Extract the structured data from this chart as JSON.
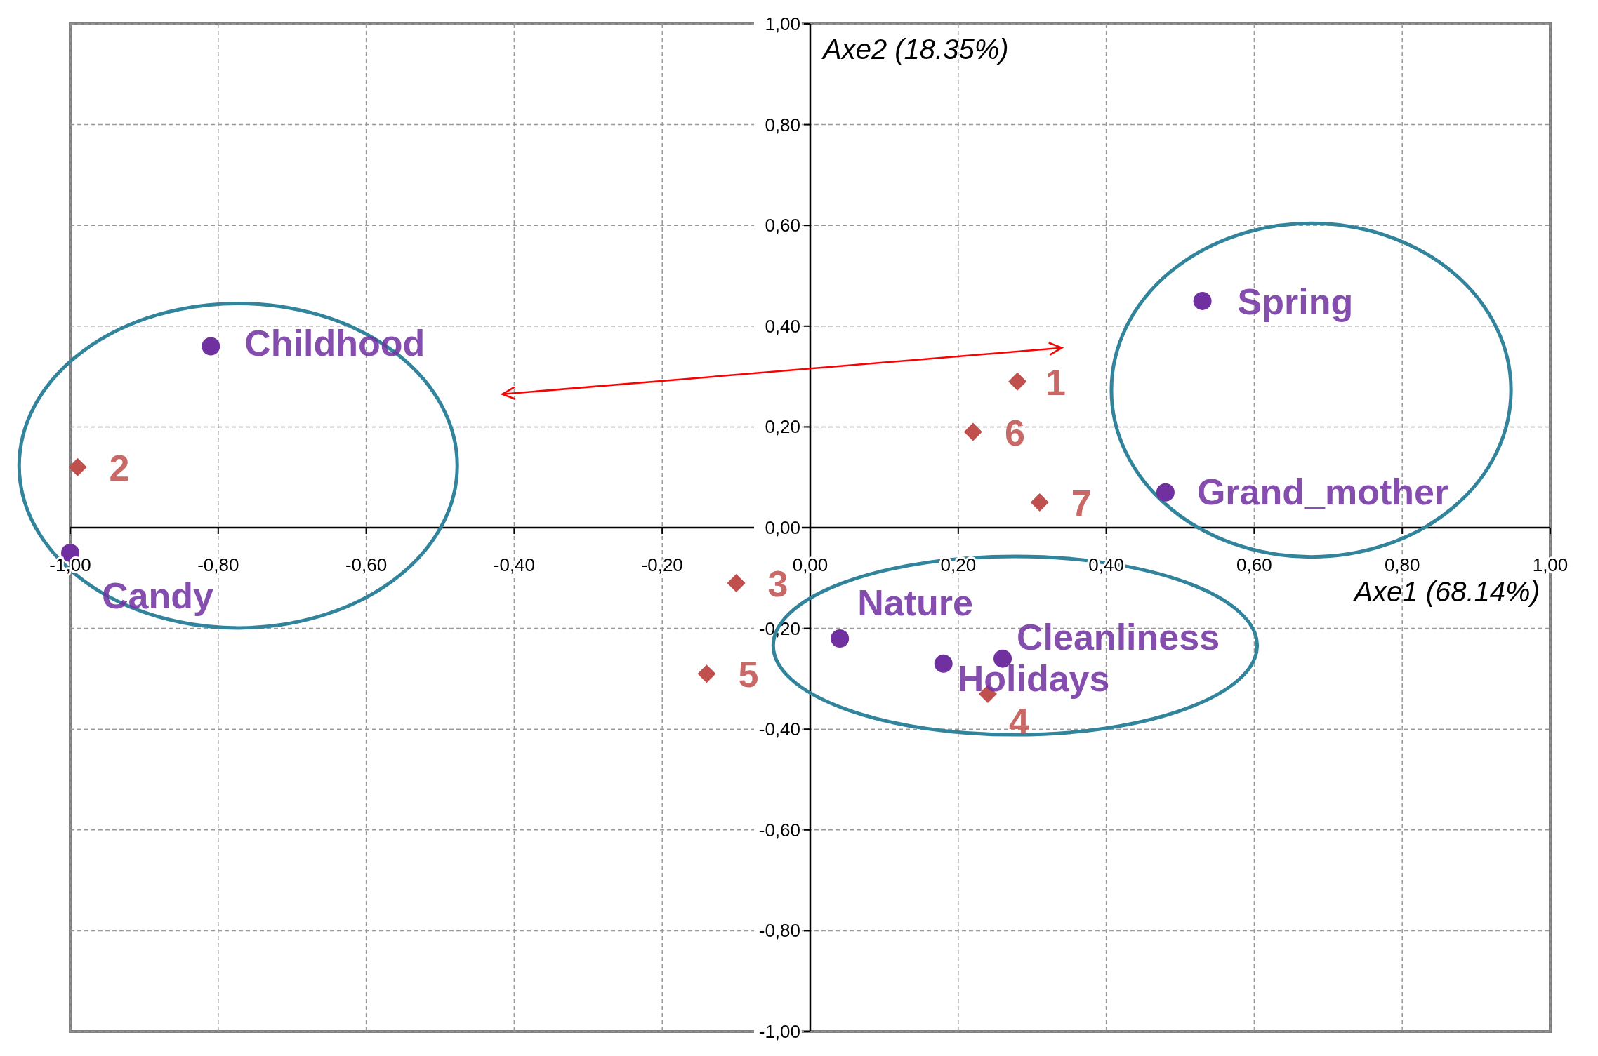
{
  "chart_data": {
    "type": "scatter",
    "xlabel": "Axe1 (68.14%)",
    "ylabel": "Axe2 (18.35%)",
    "xlim": [
      -1,
      1
    ],
    "ylim": [
      -1,
      1
    ],
    "xticks": [
      {
        "value": -1,
        "label": "-1,00"
      },
      {
        "value": -0.8,
        "label": "-0,80"
      },
      {
        "value": -0.6,
        "label": "-0,60"
      },
      {
        "value": -0.4,
        "label": "-0,40"
      },
      {
        "value": -0.2,
        "label": "-0,20"
      },
      {
        "value": 0,
        "label": "0,00"
      },
      {
        "value": 0.2,
        "label": "0,20"
      },
      {
        "value": 0.4,
        "label": "0,40"
      },
      {
        "value": 0.6,
        "label": "0,60"
      },
      {
        "value": 0.8,
        "label": "0,80"
      },
      {
        "value": 1,
        "label": "1,00"
      }
    ],
    "yticks": [
      {
        "value": -1,
        "label": "-1,00"
      },
      {
        "value": -0.8,
        "label": "-0,80"
      },
      {
        "value": -0.6,
        "label": "-0,60"
      },
      {
        "value": -0.4,
        "label": "-0,40"
      },
      {
        "value": -0.2,
        "label": "-0,20"
      },
      {
        "value": 0,
        "label": "0,00"
      },
      {
        "value": 0.2,
        "label": "0,20"
      },
      {
        "value": 0.4,
        "label": "0,40"
      },
      {
        "value": 0.6,
        "label": "0,60"
      },
      {
        "value": 0.8,
        "label": "0,80"
      },
      {
        "value": 1,
        "label": "1,00"
      }
    ],
    "grid": true,
    "series": [
      {
        "color": "#7030a0",
        "marker": "circle",
        "x": [
          -0.81,
          -1.0,
          0.53,
          0.48,
          0.04,
          0.18,
          0.26
        ],
        "values": [
          0.36,
          -0.05,
          0.45,
          0.07,
          -0.22,
          -0.27,
          -0.26
        ]
      },
      {
        "color": "#c0504d",
        "marker": "diamond",
        "x": [
          0.28,
          -0.99,
          -0.1,
          0.24,
          -0.14,
          0.22,
          0.31
        ],
        "values": [
          0.29,
          0.12,
          -0.11,
          -0.33,
          -0.29,
          0.19,
          0.05
        ]
      }
    ],
    "annotations": [
      {
        "text": "Childhood",
        "x": -0.81,
        "y": 0.36
      },
      {
        "text": "Candy",
        "x": -1.0,
        "y": -0.05
      },
      {
        "text": "Spring",
        "x": 0.53,
        "y": 0.45
      },
      {
        "text": "Grand_mother",
        "x": 0.48,
        "y": 0.07
      },
      {
        "text": "Nature",
        "x": 0.04,
        "y": -0.22
      },
      {
        "text": "Holidays",
        "x": 0.18,
        "y": -0.27
      },
      {
        "text": "Cleanliness",
        "x": 0.26,
        "y": -0.26
      },
      {
        "text": "1",
        "x": 0.28,
        "y": 0.29
      },
      {
        "text": "2",
        "x": -0.99,
        "y": 0.12
      },
      {
        "text": "3",
        "x": -0.1,
        "y": -0.11
      },
      {
        "text": "4",
        "x": 0.24,
        "y": -0.33
      },
      {
        "text": "5",
        "x": -0.14,
        "y": -0.29
      },
      {
        "text": "6",
        "x": 0.22,
        "y": 0.19
      },
      {
        "text": "7",
        "x": 0.31,
        "y": 0.05
      }
    ]
  }
}
